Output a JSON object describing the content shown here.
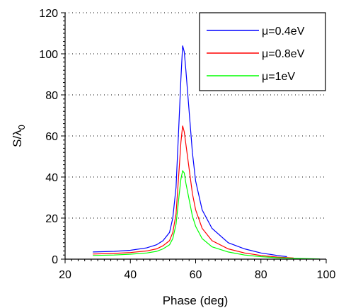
{
  "chart_data": {
    "type": "line",
    "title": "",
    "xlabel": "Phase (deg)",
    "ylabel_main": "S/λ",
    "ylabel_sub": "0",
    "xlim": [
      20,
      100
    ],
    "ylim": [
      0,
      120
    ],
    "xticks": [
      20,
      40,
      60,
      80,
      100
    ],
    "yticks": [
      0,
      20,
      40,
      60,
      80,
      100,
      120
    ],
    "grid": "horizontal dotted",
    "legend_position": "top-right",
    "series": [
      {
        "name": "μ=0.4eV",
        "color": "#0000ff",
        "points": [
          [
            28.5,
            3.5
          ],
          [
            35,
            3.8
          ],
          [
            40,
            4.3
          ],
          [
            45,
            5.5
          ],
          [
            48,
            7
          ],
          [
            50,
            9
          ],
          [
            52,
            13
          ],
          [
            53,
            20
          ],
          [
            54,
            35
          ],
          [
            55,
            70
          ],
          [
            55.5,
            88
          ],
          [
            56,
            104
          ],
          [
            56.5,
            101
          ],
          [
            57,
            92
          ],
          [
            58,
            72
          ],
          [
            59,
            52
          ],
          [
            60,
            38
          ],
          [
            62,
            24
          ],
          [
            65,
            15
          ],
          [
            70,
            8
          ],
          [
            75,
            5
          ],
          [
            80,
            3
          ],
          [
            85,
            1.8
          ],
          [
            88,
            1.2
          ]
        ]
      },
      {
        "name": "μ=0.8eV",
        "color": "#ff0000",
        "points": [
          [
            28.5,
            2.5
          ],
          [
            35,
            2.8
          ],
          [
            40,
            3.2
          ],
          [
            45,
            4
          ],
          [
            48,
            5
          ],
          [
            50,
            6.5
          ],
          [
            52,
            9
          ],
          [
            53,
            13
          ],
          [
            54,
            22
          ],
          [
            55,
            45
          ],
          [
            55.5,
            57
          ],
          [
            56,
            65
          ],
          [
            56.5,
            62
          ],
          [
            57,
            56
          ],
          [
            58,
            44
          ],
          [
            59,
            32
          ],
          [
            60,
            24
          ],
          [
            62,
            15
          ],
          [
            65,
            9
          ],
          [
            70,
            5
          ],
          [
            75,
            3
          ],
          [
            80,
            1.8
          ],
          [
            85,
            1
          ],
          [
            90,
            0.6
          ]
        ]
      },
      {
        "name": "μ=1eV",
        "color": "#00ff00",
        "points": [
          [
            28.5,
            1.8
          ],
          [
            35,
            2
          ],
          [
            40,
            2.4
          ],
          [
            45,
            3
          ],
          [
            48,
            3.8
          ],
          [
            50,
            5
          ],
          [
            52,
            7
          ],
          [
            53,
            10
          ],
          [
            54,
            17
          ],
          [
            55,
            32
          ],
          [
            55.5,
            39
          ],
          [
            56,
            43
          ],
          [
            56.5,
            42
          ],
          [
            57,
            37
          ],
          [
            58,
            29
          ],
          [
            59,
            21
          ],
          [
            60,
            16
          ],
          [
            62,
            10
          ],
          [
            65,
            6
          ],
          [
            70,
            3.5
          ],
          [
            75,
            2
          ],
          [
            80,
            1.2
          ],
          [
            85,
            0.7
          ],
          [
            90,
            0.4
          ],
          [
            95,
            0.2
          ],
          [
            98,
            0.1
          ]
        ]
      }
    ]
  }
}
